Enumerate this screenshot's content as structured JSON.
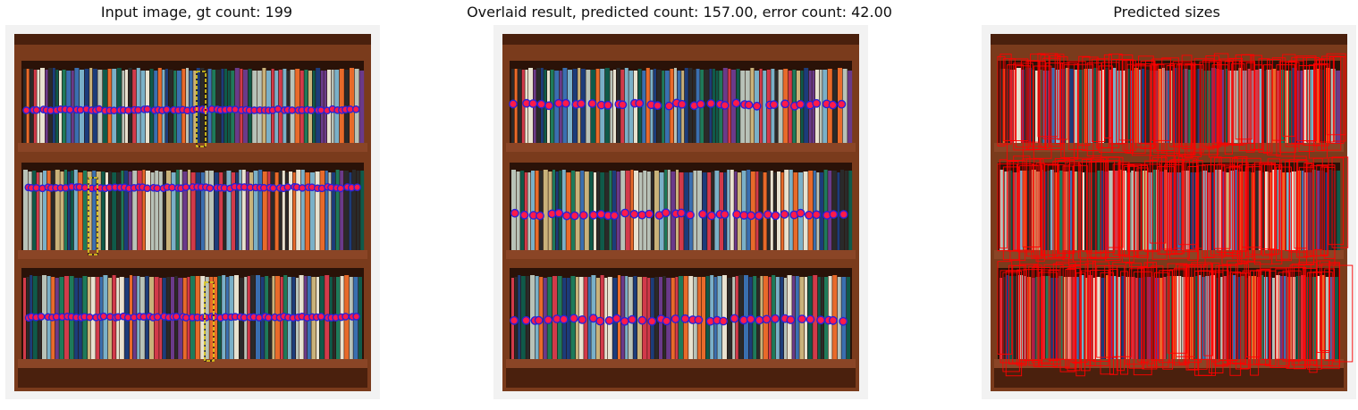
{
  "panels": [
    {
      "id": "input",
      "title": "Input image, gt count: 199"
    },
    {
      "id": "overlay",
      "title": "Overlaid result, predicted count: 157.00, error count: 42.00"
    },
    {
      "id": "sizes",
      "title": "Predicted sizes"
    }
  ],
  "counts": {
    "gt": 199,
    "predicted": 157.0,
    "error": 42.0
  },
  "colors": {
    "wood": "#7a3b1c",
    "wood_dark": "#4a200d",
    "shelf_back": "#2a1208",
    "point_fill": "#ff1a4a",
    "point_stroke": "#2a22d8",
    "exemplar_box": "#e8d21a",
    "size_box": "#ff0000",
    "book_palette": [
      "#b8c2b8",
      "#1e7a5a",
      "#d23a4a",
      "#3a6fb0",
      "#e8e2d0",
      "#2a2a2a",
      "#0f5a4a",
      "#c9b27a",
      "#6a3a8a",
      "#1c3c7a",
      "#e86a2a",
      "#7ab0c8"
    ]
  }
}
